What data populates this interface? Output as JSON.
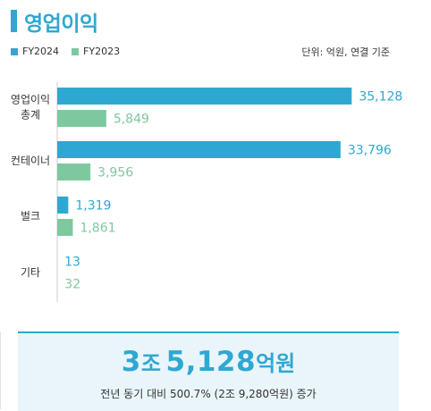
{
  "header": {
    "title": "영업이익",
    "unit": "단위: 억원, 연결 기준"
  },
  "colors": {
    "accent": "#2fa8d1",
    "fy2024": "#2fa8d1",
    "fy2023": "#7ec8a0"
  },
  "legend": {
    "fy2024": "FY2024",
    "fy2023": "FY2023"
  },
  "chart_data": {
    "type": "bar",
    "orientation": "horizontal",
    "categories": [
      [
        "영업이익",
        "총계"
      ],
      [
        "컨테이너"
      ],
      [
        "벌크"
      ],
      [
        "기타"
      ]
    ],
    "series": [
      {
        "name": "FY2024",
        "values": [
          35128,
          33796,
          1319,
          13
        ],
        "labels": [
          "35,128",
          "33,796",
          "1,319",
          "13"
        ]
      },
      {
        "name": "FY2023",
        "values": [
          5849,
          3956,
          1861,
          32
        ],
        "labels": [
          "5,849",
          "3,956",
          "1,861",
          "32"
        ]
      }
    ],
    "xlim": [
      0,
      40000
    ],
    "legend_position": "top-left",
    "grid": false
  },
  "summary": {
    "value_num1": "3",
    "value_unit1": "조",
    "value_num2": "5,128",
    "value_unit2": "억원",
    "note": "전년 동기 대비 500.7% (2조 9,280억원) 증가"
  }
}
